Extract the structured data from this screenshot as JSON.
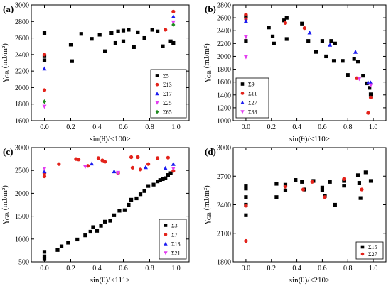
{
  "chart_data": [
    {
      "panel_label": "(a)",
      "type": "scatter",
      "xlabel": "sin(θ)/<100>",
      "ylabel_main": "γ",
      "ylabel_sub": "GB",
      "ylabel_unit": "(mJ/m²)",
      "xlim": [
        -0.1,
        1.1
      ],
      "ylim": [
        1600,
        3000
      ],
      "xticks": [
        0.0,
        0.2,
        0.4,
        0.6,
        0.8,
        1.0
      ],
      "xtick_labels": [
        "0.0",
        "0.2",
        "0.4",
        "0.6",
        "0.8",
        "1.0"
      ],
      "yticks": [
        1600,
        1800,
        2000,
        2200,
        2400,
        2600,
        2800,
        3000
      ],
      "ytick_labels": [
        "1600",
        "1800",
        "2000",
        "2200",
        "2400",
        "2600",
        "2800",
        "3000"
      ],
      "legend_position": "bottom-right",
      "series": [
        {
          "name": "Σ5",
          "marker": "square",
          "color": "#000000",
          "x": [
            0,
            0,
            0,
            0.2,
            0.21,
            0.28,
            0.36,
            0.42,
            0.46,
            0.51,
            0.54,
            0.56,
            0.6,
            0.6,
            0.64,
            0.68,
            0.71,
            0.76,
            0.82,
            0.86,
            0.9,
            0.96,
            0.98
          ],
          "y": [
            2660,
            2380,
            2330,
            2520,
            2320,
            2650,
            2590,
            2640,
            2440,
            2660,
            2540,
            2680,
            2690,
            2560,
            2700,
            2490,
            2670,
            2600,
            2700,
            2680,
            2500,
            2560,
            2540
          ]
        },
        {
          "name": "Σ13",
          "marker": "circle",
          "color": "#e3231b",
          "x": [
            0,
            0,
            0.92,
            0.98
          ],
          "y": [
            2400,
            1970,
            2700,
            2920
          ]
        },
        {
          "name": "Σ17",
          "marker": "triangle-up",
          "color": "#1c1cf0",
          "x": [
            0,
            0.98
          ],
          "y": [
            2230,
            2860
          ]
        },
        {
          "name": "Σ25",
          "marker": "triangle-down",
          "color": "#e33ef0",
          "x": [
            0,
            0.98
          ],
          "y": [
            1770,
            2790
          ]
        },
        {
          "name": "Σ65",
          "marker": "diamond",
          "color": "#1f8a1f",
          "x": [
            0,
            0.98
          ],
          "y": [
            1830,
            2760
          ]
        }
      ]
    },
    {
      "panel_label": "(b)",
      "type": "scatter",
      "xlabel": "sin(θ)/<110>",
      "ylabel_main": "γ",
      "ylabel_sub": "GB",
      "ylabel_unit": "(mJ/m²)",
      "xlim": [
        -0.1,
        1.1
      ],
      "ylim": [
        1000,
        2800
      ],
      "xticks": [
        0.0,
        0.2,
        0.4,
        0.6,
        0.8,
        1.0
      ],
      "xtick_labels": [
        "0.0",
        "0.2",
        "0.4",
        "0.6",
        "0.8",
        "1.0"
      ],
      "yticks": [
        1000,
        1200,
        1400,
        1600,
        1800,
        2000,
        2200,
        2400,
        2600,
        2800
      ],
      "ytick_labels": [
        "1000",
        "1200",
        "1400",
        "1600",
        "1800",
        "2000",
        "2200",
        "2400",
        "2600",
        "2800"
      ],
      "legend_position": "bottom-left",
      "series": [
        {
          "name": "Σ9",
          "marker": "square",
          "color": "#000000",
          "x": [
            0,
            0,
            0.18,
            0.21,
            0.22,
            0.3,
            0.32,
            0.32,
            0.44,
            0.49,
            0.55,
            0.6,
            0.63,
            0.67,
            0.69,
            0.7,
            0.76,
            0.8,
            0.85,
            0.88,
            0.92,
            0.95,
            0.97,
            0.98
          ],
          "y": [
            2620,
            2240,
            2450,
            2310,
            2200,
            2560,
            2600,
            2270,
            2510,
            2240,
            2070,
            2240,
            2000,
            2240,
            1930,
            2200,
            1930,
            1710,
            1960,
            1920,
            1700,
            1580,
            1510,
            1410
          ]
        },
        {
          "name": "Σ11",
          "marker": "circle",
          "color": "#e3231b",
          "x": [
            0,
            0,
            0.31,
            0.46,
            0.87,
            0.96,
            0.98
          ],
          "y": [
            2650,
            2580,
            2520,
            2440,
            1660,
            1120,
            1360
          ]
        },
        {
          "name": "Σ27",
          "marker": "triangle-up",
          "color": "#1c1cf0",
          "x": [
            0,
            0.5,
            0.66,
            0.86,
            0.96,
            0.98
          ],
          "y": [
            2550,
            2370,
            2180,
            2070,
            1590,
            1590
          ]
        },
        {
          "name": "Σ33",
          "marker": "triangle-down",
          "color": "#e33ef0",
          "x": [
            0,
            0,
            0.89,
            0.98
          ],
          "y": [
            2300,
            1990,
            1650,
            1550
          ]
        }
      ]
    },
    {
      "panel_label": "(c)",
      "type": "scatter",
      "xlabel": "sin(θ)/<111>",
      "ylabel_main": "γ",
      "ylabel_sub": "GB",
      "ylabel_unit": "(mJ/m²)",
      "xlim": [
        -0.1,
        1.1
      ],
      "ylim": [
        500,
        3000
      ],
      "xticks": [
        0.0,
        0.2,
        0.4,
        0.6,
        0.8,
        1.0
      ],
      "xtick_labels": [
        "0.0",
        "0.2",
        "0.4",
        "0.6",
        "0.8",
        "1.0"
      ],
      "yticks": [
        500,
        1000,
        1500,
        2000,
        2500,
        3000
      ],
      "ytick_labels": [
        "500",
        "1000",
        "1500",
        "2000",
        "2500",
        "3000"
      ],
      "legend_position": "bottom-right",
      "series": [
        {
          "name": "Σ3",
          "marker": "square",
          "color": "#000000",
          "x": [
            0,
            0,
            0,
            0.1,
            0.13,
            0.18,
            0.25,
            0.31,
            0.35,
            0.37,
            0.4,
            0.43,
            0.46,
            0.5,
            0.53,
            0.57,
            0.61,
            0.64,
            0.66,
            0.7,
            0.73,
            0.76,
            0.79,
            0.83,
            0.86,
            0.88,
            0.9,
            0.92,
            0.94,
            0.96
          ],
          "y": [
            720,
            620,
            560,
            760,
            840,
            920,
            990,
            1080,
            1160,
            1260,
            1180,
            1290,
            1380,
            1400,
            1520,
            1620,
            1630,
            1750,
            1860,
            1890,
            1980,
            2050,
            2160,
            2190,
            2260,
            2290,
            2310,
            2330,
            2400,
            2440
          ]
        },
        {
          "name": "Σ7",
          "marker": "circle",
          "color": "#e3231b",
          "x": [
            0,
            0,
            0.11,
            0.24,
            0.26,
            0.33,
            0.41,
            0.44,
            0.46,
            0.56,
            0.66,
            0.67,
            0.71,
            0.73,
            0.79,
            0.86,
            0.94,
            0.98
          ],
          "y": [
            2440,
            2370,
            2640,
            2750,
            2740,
            2600,
            2770,
            2720,
            2690,
            2440,
            2790,
            2560,
            2790,
            2520,
            2640,
            2770,
            2780,
            2490
          ]
        },
        {
          "name": "Σ13",
          "marker": "triangle-up",
          "color": "#1c1cf0",
          "x": [
            0,
            0.36,
            0.53,
            0.77,
            0.92,
            0.98
          ],
          "y": [
            2480,
            2650,
            2480,
            2570,
            2550,
            2640
          ]
        },
        {
          "name": "Σ21",
          "marker": "triangle-down",
          "color": "#e33ef0",
          "x": [
            0,
            0.31,
            0.56,
            0.98
          ],
          "y": [
            2540,
            2580,
            2450,
            2540
          ]
        }
      ]
    },
    {
      "panel_label": "(d)",
      "type": "scatter",
      "xlabel": "sin(θ)/<210>",
      "ylabel_main": "γ",
      "ylabel_sub": "GB",
      "ylabel_unit": "(mJ/m²)",
      "xlim": [
        -0.1,
        1.1
      ],
      "ylim": [
        1800,
        3000
      ],
      "xticks": [
        0.0,
        0.2,
        0.4,
        0.6,
        0.8,
        1.0
      ],
      "xtick_labels": [
        "0.0",
        "0.2",
        "0.4",
        "0.6",
        "0.8",
        "1.0"
      ],
      "yticks": [
        1800,
        2100,
        2400,
        2700,
        3000
      ],
      "ytick_labels": [
        "1800",
        "2100",
        "2400",
        "2700",
        "3000"
      ],
      "legend_position": "bottom-right",
      "series": [
        {
          "name": "Σ15",
          "marker": "square",
          "color": "#000000",
          "x": [
            0,
            0,
            0,
            0,
            0,
            0.24,
            0.24,
            0.31,
            0.31,
            0.39,
            0.44,
            0.46,
            0.53,
            0.6,
            0.6,
            0.62,
            0.66,
            0.7,
            0.77,
            0.77,
            0.88,
            0.89,
            0.9,
            0.94,
            0.98
          ],
          "y": [
            2600,
            2570,
            2480,
            2400,
            2290,
            2620,
            2480,
            2610,
            2550,
            2660,
            2640,
            2560,
            2650,
            2580,
            2550,
            2490,
            2640,
            2400,
            2650,
            2600,
            2710,
            2630,
            2470,
            2740,
            2650
          ]
        },
        {
          "name": "Σ27",
          "marker": "circle",
          "color": "#e3231b",
          "x": [
            0,
            0,
            0.31,
            0.45,
            0.52,
            0.62,
            0.77,
            0.91
          ],
          "y": [
            2020,
            2390,
            2590,
            2560,
            2640,
            2480,
            2670,
            2560
          ]
        }
      ]
    }
  ]
}
